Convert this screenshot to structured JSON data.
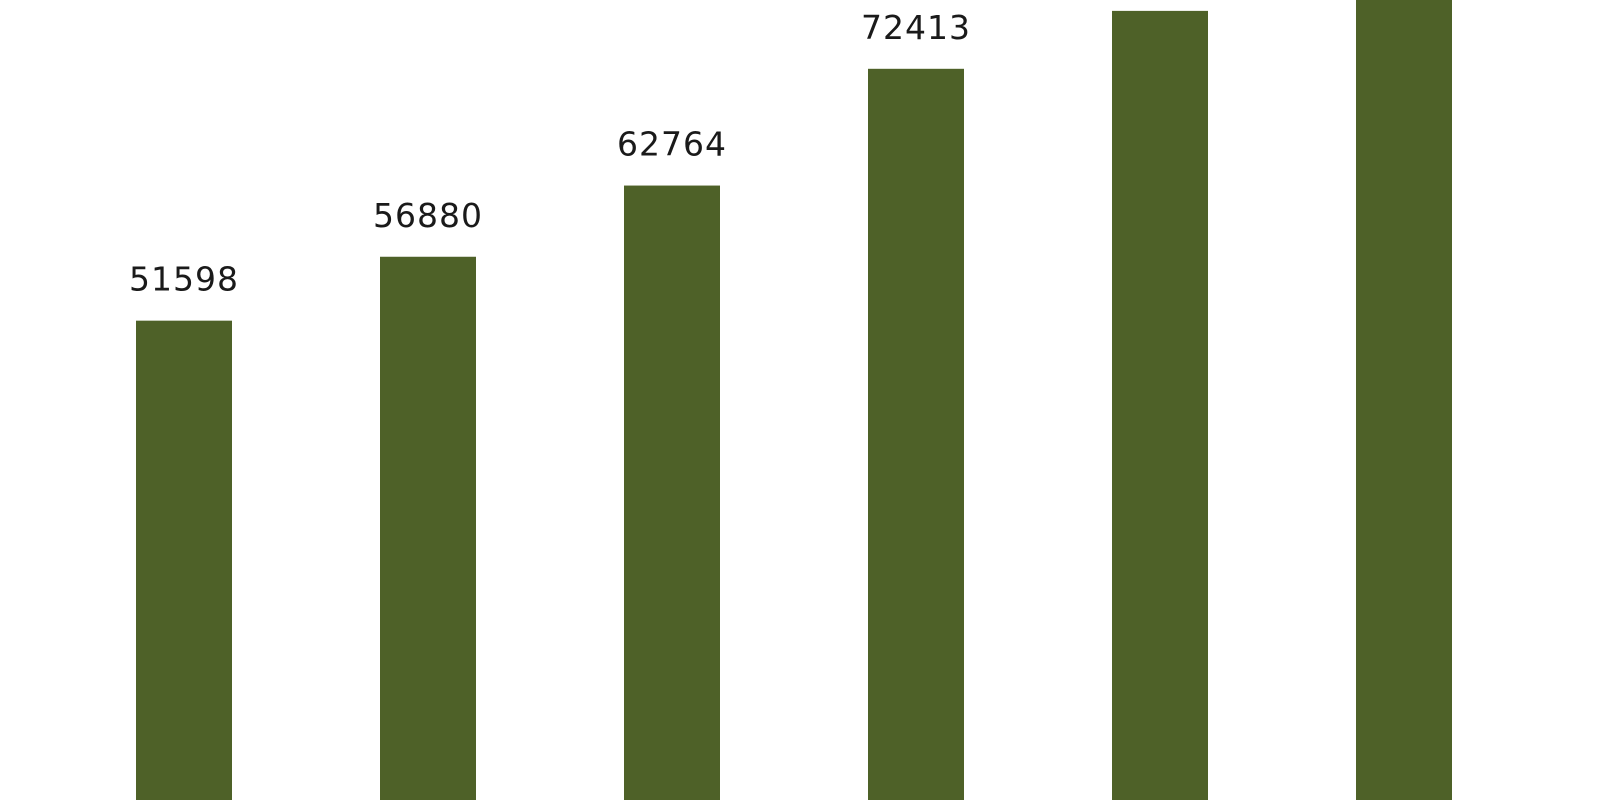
{
  "chart_data": {
    "type": "bar",
    "values": [
      51598,
      56880,
      62764,
      72413,
      77200,
      81500
    ],
    "data_labels": [
      "51598",
      "56880",
      "62764",
      "72413",
      "",
      ""
    ],
    "bar_color": "#4e6128",
    "background_color": "#ffffff",
    "label_color": "#1a1a1a",
    "grid": false,
    "legend": "none"
  }
}
